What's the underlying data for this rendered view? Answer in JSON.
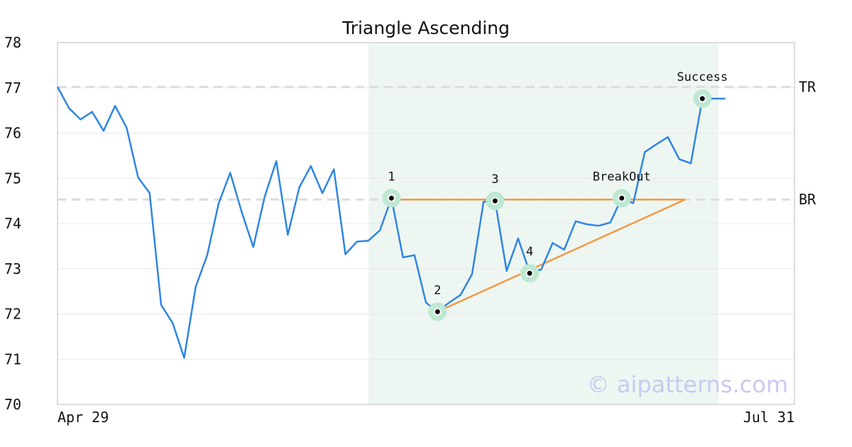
{
  "colors": {
    "price_line": "#2f86e0",
    "trendline": "#f29a45",
    "pattern_zone": "#eef6f2",
    "point_halo": "#bde8d2",
    "level_dash": "#dddddd",
    "grid": "#e8e8e8",
    "frame": "#dcdcdc",
    "watermark": "#c9c9f4"
  },
  "chart_data": {
    "type": "line",
    "title": "Triangle Ascending",
    "xlabel": "",
    "ylabel": "",
    "ylim": [
      70,
      78
    ],
    "yticks": [
      "78",
      "77",
      "76",
      "75",
      "74",
      "73",
      "72",
      "71",
      "70"
    ],
    "xlim": [
      0,
      64
    ],
    "xtick_labels": [
      {
        "x": 0,
        "label": "Apr 29"
      },
      {
        "x": 64,
        "label": "Jul 31"
      }
    ],
    "grid": "horizontal",
    "series": [
      {
        "values": [
          77.02,
          76.55,
          76.3,
          76.47,
          76.05,
          76.6,
          76.12,
          75.02,
          74.67,
          72.2,
          71.8,
          71.03,
          72.6,
          73.3,
          74.45,
          75.12,
          74.25,
          73.48,
          74.6,
          75.38,
          73.75,
          74.8,
          75.27,
          74.67,
          75.2,
          73.32,
          73.6,
          73.62,
          73.85,
          74.56,
          73.25,
          73.3,
          72.25,
          72.05,
          72.25,
          72.42,
          72.88,
          74.48,
          74.5,
          72.95,
          73.67,
          72.92,
          72.98,
          73.57,
          73.42,
          74.05,
          73.98,
          73.95,
          74.02,
          74.56,
          74.45,
          75.58,
          75.75,
          75.91,
          75.42,
          75.33,
          76.76,
          76.76,
          76.76
        ]
      }
    ],
    "levels": [
      {
        "label": "TR",
        "value": 77.02
      },
      {
        "label": "BR",
        "value": 74.53
      }
    ],
    "pattern_zone": {
      "x_start": 27,
      "x_end": 57.4
    },
    "trendlines": [
      {
        "from": [
          29,
          74.53
        ],
        "to": [
          54.5,
          74.53
        ]
      },
      {
        "from": [
          33,
          72.05
        ],
        "to": [
          54.5,
          74.53
        ]
      }
    ],
    "key_points": [
      {
        "label": "1",
        "x": 29,
        "y": 74.56,
        "label_pos": "above"
      },
      {
        "label": "2",
        "x": 33,
        "y": 72.05,
        "label_pos": "above"
      },
      {
        "label": "3",
        "x": 38,
        "y": 74.5,
        "label_pos": "above"
      },
      {
        "label": "4",
        "x": 41,
        "y": 72.9,
        "label_pos": "above"
      },
      {
        "label": "BreakOut",
        "x": 49,
        "y": 74.56,
        "label_pos": "above"
      },
      {
        "label": "Success",
        "x": 56,
        "y": 76.76,
        "label_pos": "above"
      }
    ],
    "watermark": "© aipatterns.com"
  }
}
